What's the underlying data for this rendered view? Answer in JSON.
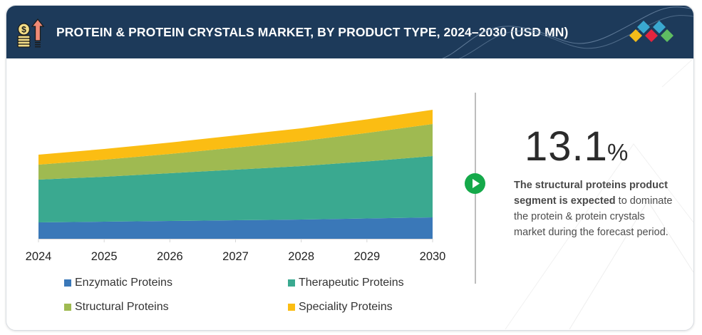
{
  "header": {
    "title": "PROTEIN & PROTEIN CRYSTALS MARKET, BY PRODUCT TYPE, 2024–2030 (USD MN)",
    "icon": "coins-growth-arrow-icon",
    "logo": "brand-diamonds-logo"
  },
  "colors": {
    "header_bg": "#1d3a5a",
    "enzymatic": "#3a78b8",
    "therapeutic": "#3aa990",
    "structural": "#9fba51",
    "speciality": "#fbbd13",
    "accent_green": "#15a94a"
  },
  "chart_data": {
    "type": "area",
    "stacked": true,
    "title": "PROTEIN & PROTEIN CRYSTALS MARKET, BY PRODUCT TYPE, 2024–2030 (USD MN)",
    "xlabel": "",
    "ylabel": "",
    "x": [
      "2024",
      "2025",
      "2026",
      "2027",
      "2028",
      "2029",
      "2030"
    ],
    "y_axis_shown": false,
    "values_note": "relative index values (no y-axis printed)",
    "series": [
      {
        "name": "Enzymatic Proteins",
        "color": "#3a78b8",
        "values": [
          23,
          24,
          25,
          26,
          27,
          28.5,
          30
        ]
      },
      {
        "name": "Therapeutic Proteins",
        "color": "#3aa990",
        "values": [
          60,
          63,
          67,
          71,
          75,
          80,
          86
        ]
      },
      {
        "name": "Structural Proteins",
        "color": "#9fba51",
        "values": [
          21,
          24,
          27,
          31,
          35,
          40,
          45
        ]
      },
      {
        "name": "Speciality Proteins",
        "color": "#fbbd13",
        "values": [
          14,
          15,
          16,
          17,
          18,
          19,
          20
        ]
      }
    ],
    "ylim": [
      0,
      181
    ],
    "grid": false,
    "legend": "bottom"
  },
  "legend": [
    {
      "label": "Enzymatic Proteins",
      "color": "#3a78b8"
    },
    {
      "label": "Therapeutic Proteins",
      "color": "#3aa990"
    },
    {
      "label": "Structural Proteins",
      "color": "#9fba51"
    },
    {
      "label": "Speciality Proteins",
      "color": "#fbbd13"
    }
  ],
  "stat": {
    "value": "13.1",
    "unit": "%",
    "desc_bold": "The structural proteins product segment is expected",
    "desc_rest": " to dominate the protein & protein crystals market during the forecast period.",
    "play_icon": "play-circle-icon"
  }
}
